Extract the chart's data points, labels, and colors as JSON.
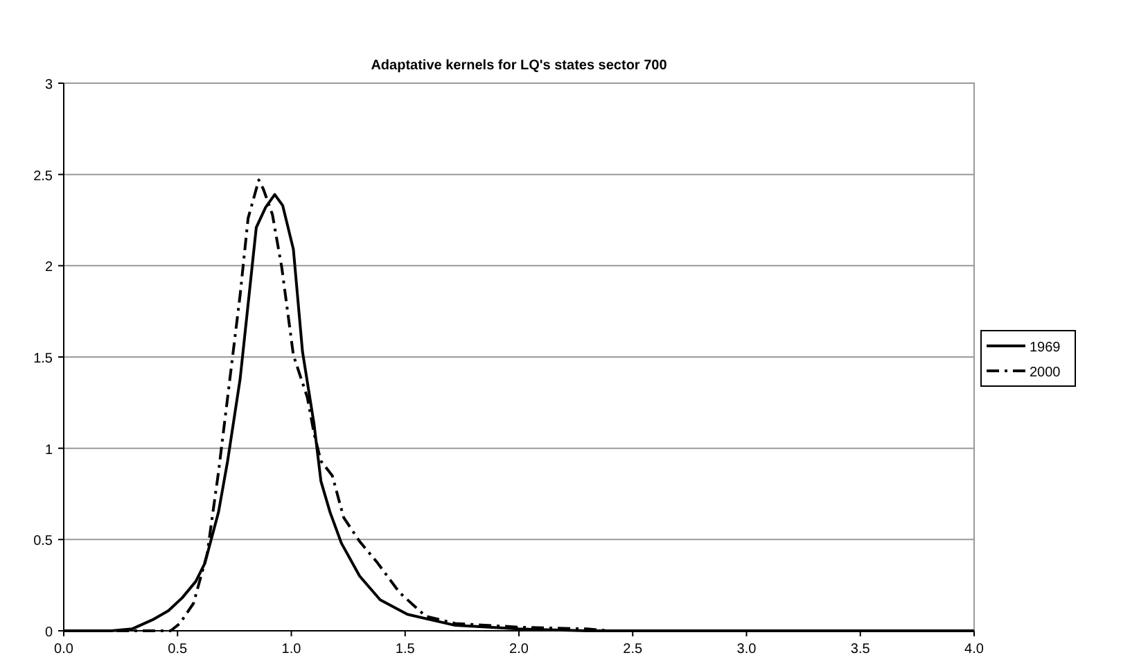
{
  "chart_data": {
    "type": "line",
    "title": "Adaptative kernels for LQ's states sector 700",
    "xlim": [
      0,
      4
    ],
    "xticks": [
      {
        "value": 0,
        "label": "0.0"
      },
      {
        "value": 0.5,
        "label": "0.5"
      },
      {
        "value": 1,
        "label": "1.0"
      },
      {
        "value": 1.5,
        "label": "1.5"
      },
      {
        "value": 2,
        "label": "2.0"
      },
      {
        "value": 2.5,
        "label": "2.5"
      },
      {
        "value": 3,
        "label": "3.0"
      },
      {
        "value": 3.5,
        "label": "3.5"
      },
      {
        "value": 4,
        "label": "4.0"
      }
    ],
    "ylim": [
      0,
      3
    ],
    "yticks": [
      0,
      0.5,
      1,
      1.5,
      2,
      2.5,
      3
    ],
    "grid": "y",
    "legend": "right",
    "marker": "none",
    "series": [
      {
        "name": "1969",
        "color": "#000000",
        "line_style": "solid",
        "x": [
          0,
          0.21,
          0.3,
          0.39,
          0.46,
          0.52,
          0.58,
          0.62,
          0.68,
          0.72,
          0.775,
          0.805,
          0.846,
          0.887,
          0.927,
          0.962,
          1.009,
          1.049,
          1.1,
          1.13,
          1.17,
          1.22,
          1.3,
          1.39,
          1.51,
          1.65,
          1.72,
          2.0,
          2.3,
          4
        ],
        "values": [
          0,
          0,
          0.01,
          0.06,
          0.11,
          0.18,
          0.27,
          0.37,
          0.65,
          0.93,
          1.38,
          1.73,
          2.21,
          2.32,
          2.39,
          2.33,
          2.09,
          1.53,
          1.13,
          0.82,
          0.65,
          0.48,
          0.3,
          0.17,
          0.09,
          0.05,
          0.03,
          0.01,
          0,
          0
        ]
      },
      {
        "name": "2000",
        "color": "#000000",
        "line_style": "dashed",
        "x": [
          0,
          0.47,
          0.51,
          0.57,
          0.63,
          0.68,
          0.73,
          0.775,
          0.81,
          0.857,
          0.877,
          0.917,
          0.958,
          1.009,
          1.07,
          1.1,
          1.13,
          1.18,
          1.23,
          1.3,
          1.38,
          1.475,
          1.59,
          1.72,
          2.0,
          2.3,
          2.4,
          4
        ],
        "values": [
          0,
          0,
          0.04,
          0.15,
          0.42,
          0.87,
          1.38,
          1.84,
          2.26,
          2.47,
          2.42,
          2.28,
          1.99,
          1.51,
          1.28,
          1.08,
          0.93,
          0.85,
          0.62,
          0.49,
          0.37,
          0.21,
          0.08,
          0.04,
          0.02,
          0.01,
          0,
          0
        ]
      }
    ]
  }
}
